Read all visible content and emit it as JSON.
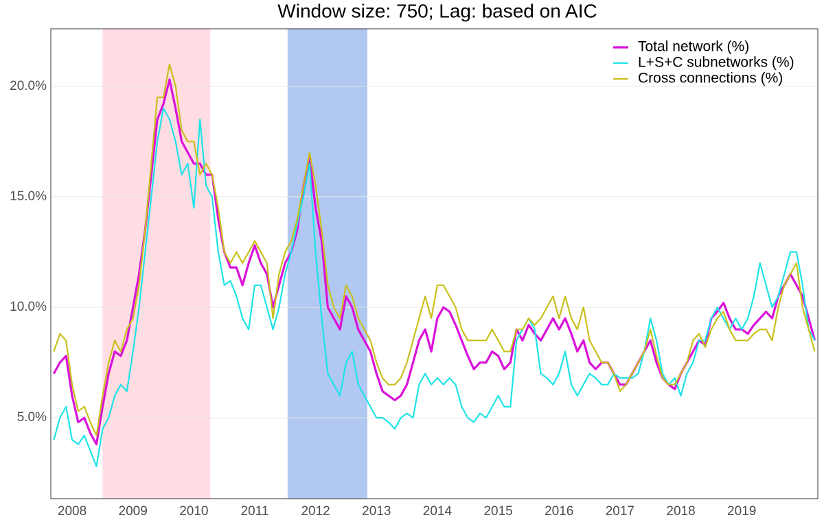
{
  "chart_data": {
    "type": "line",
    "title": "Window size: 750; Lag: based on AIC",
    "x": [
      2007.7,
      2007.8,
      2007.9,
      2008.0,
      2008.1,
      2008.2,
      2008.3,
      2008.4,
      2008.5,
      2008.6,
      2008.7,
      2008.8,
      2008.9,
      2009.0,
      2009.1,
      2009.2,
      2009.3,
      2009.4,
      2009.5,
      2009.6,
      2009.7,
      2009.8,
      2009.9,
      2010.0,
      2010.1,
      2010.2,
      2010.3,
      2010.4,
      2010.5,
      2010.6,
      2010.7,
      2010.8,
      2010.9,
      2011.0,
      2011.1,
      2011.2,
      2011.3,
      2011.4,
      2011.5,
      2011.6,
      2011.7,
      2011.8,
      2011.9,
      2012.0,
      2012.1,
      2012.2,
      2012.3,
      2012.4,
      2012.5,
      2012.6,
      2012.7,
      2012.8,
      2012.9,
      2013.0,
      2013.1,
      2013.2,
      2013.3,
      2013.4,
      2013.5,
      2013.6,
      2013.7,
      2013.8,
      2013.9,
      2014.0,
      2014.1,
      2014.2,
      2014.3,
      2014.4,
      2014.5,
      2014.6,
      2014.7,
      2014.8,
      2014.9,
      2015.0,
      2015.1,
      2015.2,
      2015.3,
      2015.4,
      2015.5,
      2015.6,
      2015.7,
      2015.8,
      2015.9,
      2016.0,
      2016.1,
      2016.2,
      2016.3,
      2016.4,
      2016.5,
      2016.6,
      2016.7,
      2016.8,
      2016.9,
      2017.0,
      2017.1,
      2017.2,
      2017.3,
      2017.4,
      2017.5,
      2017.6,
      2017.7,
      2017.8,
      2017.9,
      2018.0,
      2018.1,
      2018.2,
      2018.3,
      2018.4,
      2018.5,
      2018.6,
      2018.7,
      2018.8,
      2018.9,
      2019.0,
      2019.1,
      2019.2,
      2019.3,
      2019.4,
      2019.5,
      2019.6,
      2019.7,
      2019.8,
      2019.9,
      2020.0,
      2020.1,
      2020.2
    ],
    "series": [
      {
        "name": "Total network (%)",
        "color": "#d912d9",
        "width": 3.2,
        "values": [
          7.0,
          7.5,
          7.8,
          6.0,
          4.8,
          5.0,
          4.3,
          3.8,
          5.5,
          7.0,
          8.0,
          7.8,
          8.5,
          10.0,
          11.5,
          13.5,
          16.0,
          18.5,
          19.2,
          20.3,
          19.0,
          17.5,
          17.0,
          16.5,
          16.5,
          16.0,
          16.0,
          14.0,
          12.5,
          11.8,
          11.8,
          11.0,
          12.0,
          12.8,
          12.0,
          11.5,
          10.0,
          11.0,
          12.0,
          12.5,
          13.5,
          15.5,
          16.8,
          14.5,
          13.0,
          10.0,
          9.5,
          9.0,
          10.5,
          10.0,
          9.0,
          8.5,
          8.0,
          7.0,
          6.2,
          6.0,
          5.8,
          6.0,
          6.5,
          7.5,
          8.5,
          9.0,
          8.0,
          9.5,
          10.0,
          9.8,
          9.2,
          8.5,
          7.8,
          7.2,
          7.5,
          7.5,
          8.0,
          7.8,
          7.2,
          7.5,
          9.0,
          8.5,
          9.2,
          8.8,
          8.5,
          9.0,
          9.5,
          9.0,
          9.5,
          8.8,
          8.0,
          8.5,
          7.5,
          7.2,
          7.5,
          7.5,
          7.0,
          6.5,
          6.5,
          7.0,
          7.5,
          8.0,
          8.5,
          7.5,
          6.8,
          6.5,
          6.3,
          7.0,
          7.5,
          8.0,
          8.5,
          8.3,
          9.5,
          9.8,
          10.2,
          9.5,
          9.0,
          9.0,
          8.8,
          9.2,
          9.5,
          9.8,
          9.5,
          10.5,
          11.0,
          11.5,
          11.0,
          10.5,
          9.5,
          8.5
        ]
      },
      {
        "name": "L+S+C subnetworks (%)",
        "color": "#1ee3e8",
        "width": 2.2,
        "values": [
          4.0,
          5.0,
          5.5,
          4.0,
          3.8,
          4.2,
          3.5,
          2.8,
          4.5,
          5.0,
          6.0,
          6.5,
          6.2,
          8.0,
          10.0,
          12.5,
          15.0,
          17.5,
          19.0,
          18.5,
          17.5,
          16.0,
          16.5,
          14.5,
          18.5,
          15.5,
          15.0,
          12.5,
          11.0,
          11.2,
          10.5,
          9.5,
          9.0,
          11.0,
          11.0,
          10.0,
          9.0,
          10.0,
          11.5,
          12.5,
          13.8,
          15.0,
          16.5,
          12.5,
          9.5,
          7.0,
          6.5,
          6.0,
          7.5,
          8.0,
          6.5,
          6.0,
          5.5,
          5.0,
          5.0,
          4.8,
          4.5,
          5.0,
          5.2,
          5.0,
          6.5,
          7.0,
          6.5,
          6.8,
          6.5,
          6.8,
          6.5,
          5.5,
          5.0,
          4.8,
          5.2,
          5.0,
          5.5,
          6.0,
          5.5,
          5.5,
          8.5,
          9.0,
          9.5,
          9.0,
          7.0,
          6.8,
          6.5,
          7.0,
          8.0,
          6.5,
          6.0,
          6.5,
          7.0,
          6.8,
          6.5,
          6.5,
          7.0,
          6.8,
          6.8,
          6.8,
          7.0,
          8.0,
          9.5,
          8.5,
          7.0,
          6.5,
          6.8,
          6.0,
          7.0,
          7.5,
          8.5,
          8.5,
          9.5,
          10.0,
          9.5,
          9.0,
          9.5,
          9.0,
          9.5,
          10.5,
          12.0,
          11.0,
          10.0,
          10.5,
          11.5,
          12.5,
          12.5,
          11.0,
          9.0,
          8.5
        ]
      },
      {
        "name": "Cross connections (%)",
        "color": "#c9c01c",
        "width": 2.2,
        "values": [
          8.0,
          8.8,
          8.5,
          6.5,
          5.3,
          5.5,
          4.8,
          4.2,
          6.0,
          7.5,
          8.5,
          8.0,
          9.0,
          9.5,
          11.0,
          13.5,
          16.5,
          19.5,
          19.5,
          21.0,
          20.0,
          18.0,
          17.5,
          17.5,
          16.0,
          16.5,
          16.0,
          14.5,
          12.5,
          12.0,
          12.5,
          12.0,
          12.5,
          13.0,
          12.5,
          12.0,
          9.5,
          11.5,
          12.5,
          13.0,
          14.0,
          15.5,
          17.0,
          15.5,
          13.5,
          11.0,
          10.0,
          9.5,
          11.0,
          10.5,
          9.5,
          9.0,
          8.5,
          7.5,
          6.8,
          6.5,
          6.5,
          6.8,
          7.5,
          8.5,
          9.5,
          10.5,
          9.5,
          11.0,
          11.0,
          10.5,
          10.0,
          9.0,
          8.5,
          8.5,
          8.5,
          8.5,
          9.0,
          8.5,
          8.0,
          8.0,
          9.0,
          9.0,
          9.5,
          9.2,
          9.5,
          10.0,
          10.5,
          9.5,
          10.5,
          9.5,
          9.0,
          10.0,
          8.5,
          8.0,
          7.5,
          7.5,
          7.0,
          6.2,
          6.5,
          7.0,
          7.5,
          8.0,
          9.0,
          7.8,
          6.8,
          6.5,
          6.5,
          7.0,
          7.5,
          8.5,
          8.8,
          8.2,
          9.0,
          9.5,
          9.8,
          9.0,
          8.5,
          8.5,
          8.5,
          8.8,
          9.0,
          9.0,
          8.5,
          10.0,
          11.0,
          11.5,
          12.0,
          10.0,
          9.0,
          8.0
        ]
      }
    ],
    "shaded_periods": [
      {
        "start": 2008.5,
        "end": 2010.27,
        "color": "#ffdde3"
      },
      {
        "start": 2011.54,
        "end": 2012.85,
        "color": "#b0c8f2"
      }
    ],
    "xlim": [
      2007.65,
      2020.25
    ],
    "xticks": [
      2008,
      2009,
      2010,
      2011,
      2012,
      2013,
      2014,
      2015,
      2016,
      2017,
      2018,
      2019
    ],
    "ylim": [
      1.34,
      22.6
    ],
    "yticks": [
      {
        "value": 5,
        "label": "5.0%"
      },
      {
        "value": 10,
        "label": "10.0%"
      },
      {
        "value": 15,
        "label": "15.0%"
      },
      {
        "value": 20,
        "label": "20.0%"
      }
    ],
    "grid": true,
    "legend_position": "top-right"
  }
}
